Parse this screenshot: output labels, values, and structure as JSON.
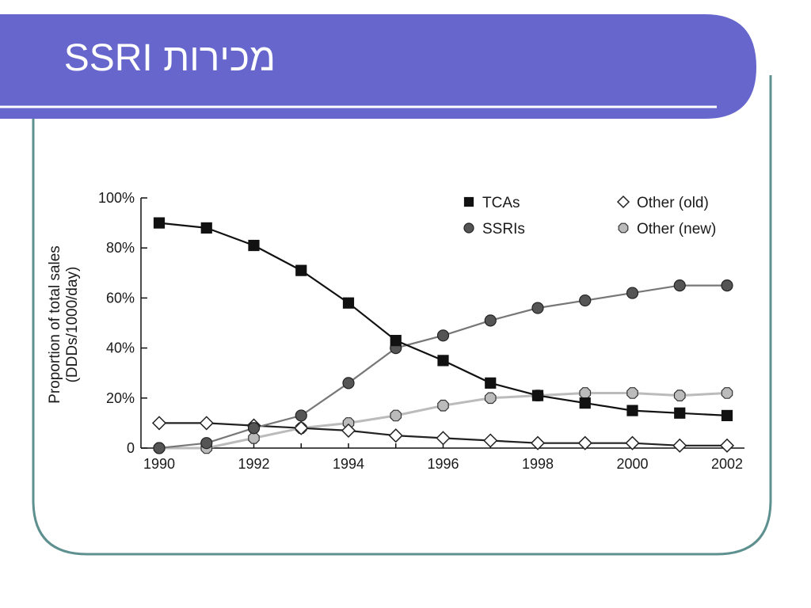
{
  "slide": {
    "title": "מכירות SSRI",
    "colors": {
      "title_band": "#6666cc",
      "frame_border": "#5f9090",
      "title_text": "#ffffff"
    }
  },
  "chart_data": {
    "type": "line",
    "title": "",
    "ylabel_line1": "Proportion of total sales",
    "ylabel_line2": "(DDDs/1000/day)",
    "xlabel": "",
    "x": [
      1990,
      1991,
      1992,
      1993,
      1994,
      1995,
      1996,
      1997,
      1998,
      1999,
      2000,
      2001,
      2002
    ],
    "x_tick_labels": [
      "1990",
      "1992",
      "1994",
      "1996",
      "1998",
      "2000",
      "2002"
    ],
    "x_tick_values": [
      1990,
      1992,
      1994,
      1996,
      1998,
      2000,
      2002
    ],
    "y_tick_labels": [
      "0",
      "20%",
      "40%",
      "60%",
      "80%",
      "100%"
    ],
    "y_tick_values": [
      0,
      20,
      40,
      60,
      80,
      100
    ],
    "xlim": [
      1990,
      2002
    ],
    "ylim": [
      0,
      100
    ],
    "grid": false,
    "legend_position": "top-right",
    "series": [
      {
        "name": "TCAs",
        "marker": "square",
        "color": "#111111",
        "line_color": "#111111",
        "values": [
          90,
          88,
          81,
          71,
          58,
          43,
          35,
          26,
          21,
          18,
          15,
          14,
          13
        ]
      },
      {
        "name": "SSRIs",
        "marker": "circle",
        "color": "#555555",
        "line_color": "#777777",
        "values": [
          0,
          2,
          8,
          13,
          26,
          40,
          45,
          51,
          56,
          59,
          62,
          65,
          65
        ]
      },
      {
        "name": "Other (old)",
        "marker": "diamond",
        "color": "#ffffff",
        "line_color": "#222222",
        "values": [
          10,
          10,
          9,
          8,
          7,
          5,
          4,
          3,
          2,
          2,
          2,
          1,
          1
        ]
      },
      {
        "name": "Other (new)",
        "marker": "hexagon",
        "color": "#bbbbbb",
        "line_color": "#bbbbbb",
        "values": [
          0,
          0,
          4,
          8,
          10,
          13,
          17,
          20,
          21,
          22,
          22,
          21,
          22
        ]
      }
    ]
  }
}
